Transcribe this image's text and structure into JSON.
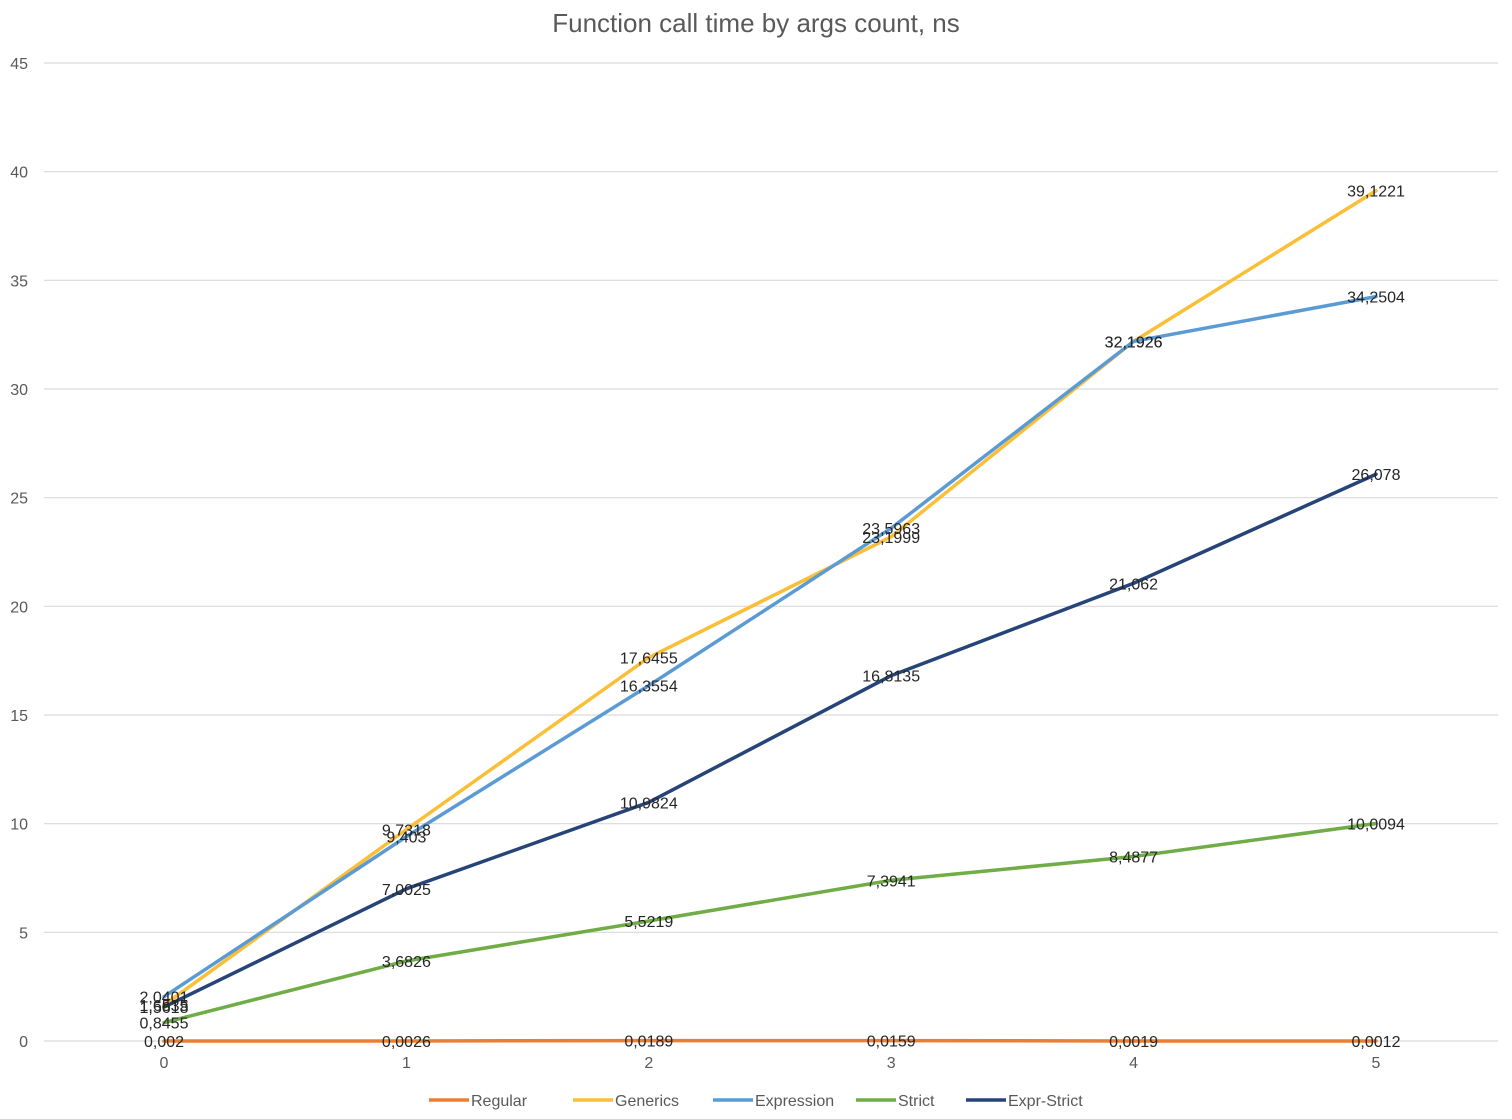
{
  "chart_data": {
    "type": "line",
    "title": "Function call time by args count, ns",
    "xlabel": "",
    "ylabel": "",
    "x": [
      0,
      1,
      2,
      3,
      4,
      5
    ],
    "x_tick_labels": [
      "0",
      "1",
      "2",
      "3",
      "4",
      "5"
    ],
    "ylim": [
      0,
      45
    ],
    "y_ticks": [
      0,
      5,
      10,
      15,
      20,
      25,
      30,
      35,
      40,
      45
    ],
    "y_tick_labels": [
      "0",
      "5",
      "10",
      "15",
      "20",
      "25",
      "30",
      "35",
      "40",
      "45"
    ],
    "grid": true,
    "legend": "bottom",
    "series": [
      {
        "name": "Regular",
        "color": "#ed7d31",
        "values": [
          0.002,
          0.0026,
          0.0189,
          0.0159,
          0.0019,
          0.0012
        ],
        "labels": [
          "0,002",
          "0,0026",
          "0,0189",
          "0,0159",
          "0,0019",
          "0,0012"
        ]
      },
      {
        "name": "Generics",
        "color": "#fbbf37",
        "values": [
          1.6535,
          9.7318,
          17.6455,
          23.1999,
          32.1926,
          39.1221
        ],
        "labels": [
          "1,6535",
          "9,7318",
          "17,6455",
          "23,1999",
          "32,1926",
          "39,1221"
        ]
      },
      {
        "name": "Expression",
        "color": "#5b9bd5",
        "values": [
          2.0401,
          9.403,
          16.3554,
          23.5963,
          32.1926,
          34.2504
        ],
        "labels": [
          "2,0401",
          "9,403",
          "16,3554",
          "23,5963",
          "32,1926",
          "34,2504"
        ]
      },
      {
        "name": "Strict",
        "color": "#70ad47",
        "values": [
          0.8455,
          3.6826,
          5.5219,
          7.3941,
          8.4877,
          10.0094
        ],
        "labels": [
          "0,8455",
          "3,6826",
          "5,5219",
          "7,3941",
          "8,4877",
          "10,0094"
        ]
      },
      {
        "name": "Expr-Strict",
        "color": "#264478",
        "values": [
          1.5618,
          7.0025,
          10.9824,
          16.8135,
          21.062,
          26.078
        ],
        "labels": [
          "1,5618",
          "7,0025",
          "10,9824",
          "16,8135",
          "21,062",
          "26,078"
        ]
      }
    ]
  }
}
